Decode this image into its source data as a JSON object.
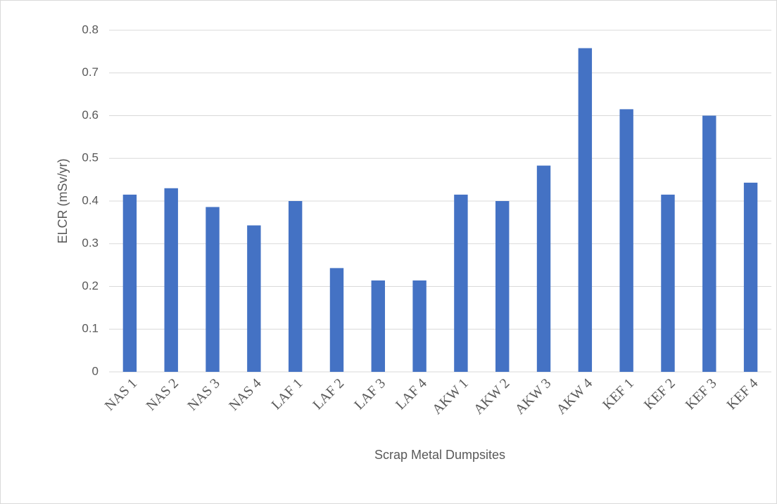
{
  "chart_data": {
    "type": "bar",
    "x_label": "Scrap Metal Dumpsites",
    "y_label": "ELCR (mSv/yr)",
    "categories": [
      "NAS 1",
      "NAS 2",
      "NAS 3",
      "NAS 4",
      "LAF 1",
      "LAF 2",
      "LAF 3",
      "LAF 4",
      "AKW 1",
      "AKW 2",
      "AKW 3",
      "AKW 4",
      "KEF 1",
      "KEF 2",
      "KEF 3",
      "KEF 4"
    ],
    "values": [
      0.415,
      0.43,
      0.386,
      0.343,
      0.4,
      0.243,
      0.214,
      0.214,
      0.415,
      0.4,
      0.483,
      0.758,
      0.615,
      0.415,
      0.6,
      0.443
    ],
    "color": "#4472c4",
    "ylim": [
      0,
      0.8
    ],
    "yticks": [
      0,
      0.1,
      0.2,
      0.3,
      0.4,
      0.5,
      0.6,
      0.7,
      0.8
    ],
    "grid": true
  }
}
